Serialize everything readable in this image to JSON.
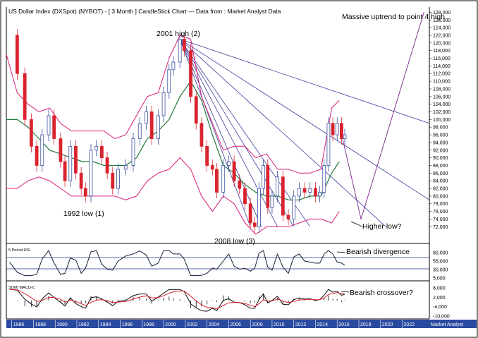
{
  "header": {
    "title": "US Dollar Index (DXSpot) (NYBOT) -  [ 3 Month ] CandleStick Chart --- Data from : Market Analyst Data"
  },
  "colors": {
    "up_candle": "#3b4fa0",
    "down_candle": "#d9232e",
    "bollinger": "#d81b7a",
    "moving_average": "#1f7a3a",
    "fan_lines": "#3b3f9a",
    "projection": "#7a1e8a",
    "rsi_line": "#1a1a3a",
    "macd_line": "#111111",
    "signal_line": "#d9232e",
    "axis_bar": "#2a4aa0"
  },
  "annotations": {
    "massive_uptrend": "Massive uptrend to point 4 high",
    "high_2001": "2001 high (2)",
    "low_1992": "1992 low (1)",
    "low_2008": "2008 low (3)",
    "higher_low": "Higher low?",
    "bearish_divergence": "Bearish divergence",
    "bearish_crossover": "Bearish crossover?"
  },
  "footer": {
    "brand": "Market Analyst"
  },
  "chart_data": [
    {
      "type": "candlestick",
      "title": "US Dollar Index (DXSpot) (NYBOT) -  [ 3 Month ] CandleStick Chart --- Data from : Market Analyst Data",
      "period": "3 Month",
      "x_ticks": [
        "1986",
        "1988",
        "1990",
        "1992",
        "1994",
        "1996",
        "1998",
        "2000",
        "2002",
        "2004",
        "2006",
        "2008",
        "2010",
        "2012",
        "2014",
        "2016",
        "2018",
        "2020",
        "2022"
      ],
      "xlim": [
        1985.5,
        2024.5
      ],
      "ylim": [
        68,
        129
      ],
      "y_ticks": [
        "72,000",
        "74,000",
        "76,000",
        "78,000",
        "80,000",
        "82,000",
        "84,000",
        "86,000",
        "88,000",
        "90,000",
        "92,000",
        "94,000",
        "96,000",
        "98,000",
        "100,000",
        "102,000",
        "104,000",
        "106,000",
        "108,000",
        "110,000",
        "112,000",
        "114,000",
        "116,000",
        "118,000",
        "120,000",
        "122,000",
        "124,000",
        "126,000",
        "128,000"
      ],
      "series": [
        {
          "name": "price",
          "points": [
            [
              1985.8,
              122
            ],
            [
              1986.5,
              112
            ],
            [
              1987.2,
              100
            ],
            [
              1987.8,
              93
            ],
            [
              1988.3,
              88
            ],
            [
              1988.8,
              96
            ],
            [
              1989.4,
              101
            ],
            [
              1989.9,
              95
            ],
            [
              1990.5,
              89
            ],
            [
              1990.9,
              84
            ],
            [
              1991.4,
              93
            ],
            [
              1991.9,
              86
            ],
            [
              1992.4,
              82
            ],
            [
              1992.8,
              80
            ],
            [
              1993.3,
              92
            ],
            [
              1993.8,
              93
            ],
            [
              1994.3,
              90
            ],
            [
              1994.8,
              86
            ],
            [
              1995.3,
              82
            ],
            [
              1995.8,
              87
            ],
            [
              1996.5,
              88
            ],
            [
              1997.2,
              95
            ],
            [
              1997.8,
              99
            ],
            [
              1998.4,
              102
            ],
            [
              1998.9,
              95
            ],
            [
              1999.5,
              101
            ],
            [
              2000.0,
              107
            ],
            [
              2000.5,
              113
            ],
            [
              2000.9,
              115
            ],
            [
              2001.5,
              121
            ],
            [
              2001.9,
              118
            ],
            [
              2002.5,
              106
            ],
            [
              2003.0,
              99
            ],
            [
              2003.5,
              93
            ],
            [
              2004.0,
              88
            ],
            [
              2004.5,
              87
            ],
            [
              2004.9,
              81
            ],
            [
              2005.5,
              88
            ],
            [
              2006.0,
              89
            ],
            [
              2006.5,
              84
            ],
            [
              2007.0,
              82
            ],
            [
              2007.5,
              78
            ],
            [
              2008.0,
              73
            ],
            [
              2008.4,
              72
            ],
            [
              2008.8,
              82
            ],
            [
              2009.2,
              88
            ],
            [
              2009.6,
              77
            ],
            [
              2010.0,
              80
            ],
            [
              2010.5,
              85
            ],
            [
              2011.0,
              75
            ],
            [
              2011.5,
              74
            ],
            [
              2012.0,
              80
            ],
            [
              2012.5,
              82
            ],
            [
              2013.0,
              81
            ],
            [
              2013.5,
              82
            ],
            [
              2014.0,
              80
            ],
            [
              2014.4,
              81
            ],
            [
              2014.8,
              88
            ],
            [
              2015.2,
              99
            ],
            [
              2015.6,
              96
            ],
            [
              2016.0,
              99
            ],
            [
              2016.4,
              95
            ],
            [
              2016.7,
              96
            ]
          ]
        }
      ],
      "bollinger_upper": [
        [
          1985.5,
          117
        ],
        [
          1986.5,
          107
        ],
        [
          1987.5,
          104
        ],
        [
          1988.5,
          102
        ],
        [
          1989.5,
          103
        ],
        [
          1990.5,
          99
        ],
        [
          1991.5,
          97
        ],
        [
          1992.5,
          97
        ],
        [
          1993.5,
          97
        ],
        [
          1994.5,
          97
        ],
        [
          1995.5,
          95
        ],
        [
          1996.5,
          96
        ],
        [
          1997.5,
          101
        ],
        [
          1998.5,
          106
        ],
        [
          1999.5,
          107
        ],
        [
          2000.5,
          116
        ],
        [
          2001.5,
          122
        ],
        [
          2002.5,
          121
        ],
        [
          2003.5,
          106
        ],
        [
          2004.5,
          99
        ],
        [
          2005.5,
          92
        ],
        [
          2006.5,
          93
        ],
        [
          2007.5,
          93
        ],
        [
          2008.5,
          90
        ],
        [
          2009.5,
          91
        ],
        [
          2010.5,
          87
        ],
        [
          2011.5,
          87
        ],
        [
          2012.5,
          86
        ],
        [
          2013.5,
          86
        ],
        [
          2014.5,
          87
        ],
        [
          2015.5,
          103
        ],
        [
          2016.2,
          105
        ]
      ],
      "bollinger_lower": [
        [
          1985.5,
          82
        ],
        [
          1986.5,
          82
        ],
        [
          1987.5,
          84
        ],
        [
          1988.5,
          85
        ],
        [
          1989.5,
          84
        ],
        [
          1990.5,
          82
        ],
        [
          1991.5,
          80
        ],
        [
          1992.5,
          80
        ],
        [
          1993.5,
          80
        ],
        [
          1994.5,
          80
        ],
        [
          1995.5,
          80
        ],
        [
          1996.5,
          79
        ],
        [
          1997.5,
          80
        ],
        [
          1998.5,
          84
        ],
        [
          1999.5,
          86
        ],
        [
          2000.5,
          87
        ],
        [
          2001.5,
          90
        ],
        [
          2002.5,
          87
        ],
        [
          2003.5,
          80
        ],
        [
          2004.5,
          76
        ],
        [
          2005.5,
          80
        ],
        [
          2006.5,
          78
        ],
        [
          2007.5,
          73
        ],
        [
          2008.5,
          70
        ],
        [
          2009.5,
          72
        ],
        [
          2010.5,
          72
        ],
        [
          2011.5,
          72
        ],
        [
          2012.5,
          73
        ],
        [
          2013.5,
          74
        ],
        [
          2014.5,
          74
        ],
        [
          2015.5,
          73
        ],
        [
          2016.2,
          76
        ]
      ],
      "moving_average": [
        [
          1985.5,
          100
        ],
        [
          1986.5,
          100
        ],
        [
          1987.5,
          98
        ],
        [
          1988.5,
          95
        ],
        [
          1989.5,
          92
        ],
        [
          1990.5,
          91
        ],
        [
          1991.5,
          90
        ],
        [
          1992.5,
          89
        ],
        [
          1993.5,
          89
        ],
        [
          1994.5,
          88
        ],
        [
          1995.5,
          88
        ],
        [
          1996.5,
          88
        ],
        [
          1997.5,
          90
        ],
        [
          1998.5,
          95
        ],
        [
          1999.5,
          97
        ],
        [
          2000.5,
          100
        ],
        [
          2001.5,
          106
        ],
        [
          2002.5,
          110
        ],
        [
          2003.5,
          105
        ],
        [
          2004.5,
          96
        ],
        [
          2005.5,
          88
        ],
        [
          2006.5,
          86
        ],
        [
          2007.5,
          83
        ],
        [
          2008.5,
          81
        ],
        [
          2009.5,
          80
        ],
        [
          2010.5,
          80
        ],
        [
          2011.5,
          79
        ],
        [
          2012.5,
          79
        ],
        [
          2013.5,
          80
        ],
        [
          2014.5,
          80
        ],
        [
          2015.5,
          86
        ],
        [
          2016.2,
          89
        ]
      ],
      "fan_lines": [
        {
          "from": [
            2001.5,
            121
          ],
          "to": [
            2024.5,
            99
          ]
        },
        {
          "from": [
            2001.5,
            121
          ],
          "to": [
            2024.5,
            79
          ]
        },
        {
          "from": [
            2001.5,
            121
          ],
          "to": [
            2020.5,
            72
          ]
        },
        {
          "from": [
            2001.5,
            121
          ],
          "to": [
            2013.5,
            72
          ]
        },
        {
          "from": [
            2001.5,
            121
          ],
          "to": [
            2012.0,
            72
          ]
        },
        {
          "from": [
            2001.5,
            121
          ],
          "to": [
            2010.5,
            72
          ]
        },
        {
          "from": [
            2001.5,
            121
          ],
          "to": [
            2009.0,
            72
          ]
        },
        {
          "from": [
            2001.5,
            121
          ],
          "to": [
            2008.0,
            72
          ]
        }
      ],
      "projection": [
        [
          2016.5,
          95
        ],
        [
          2018.2,
          74
        ],
        [
          2024.0,
          128
        ]
      ]
    },
    {
      "type": "line",
      "title": "5 Period RSI",
      "y_ticks": [
        "80,000",
        "55,000",
        "30,000",
        "5,000"
      ],
      "reference_lines": [
        80,
        30
      ]
    },
    {
      "type": "line",
      "title": "SOMI MACD-C",
      "y_ticks": [
        "8,000",
        "2,000",
        "-4,000",
        "-10,000"
      ]
    }
  ]
}
